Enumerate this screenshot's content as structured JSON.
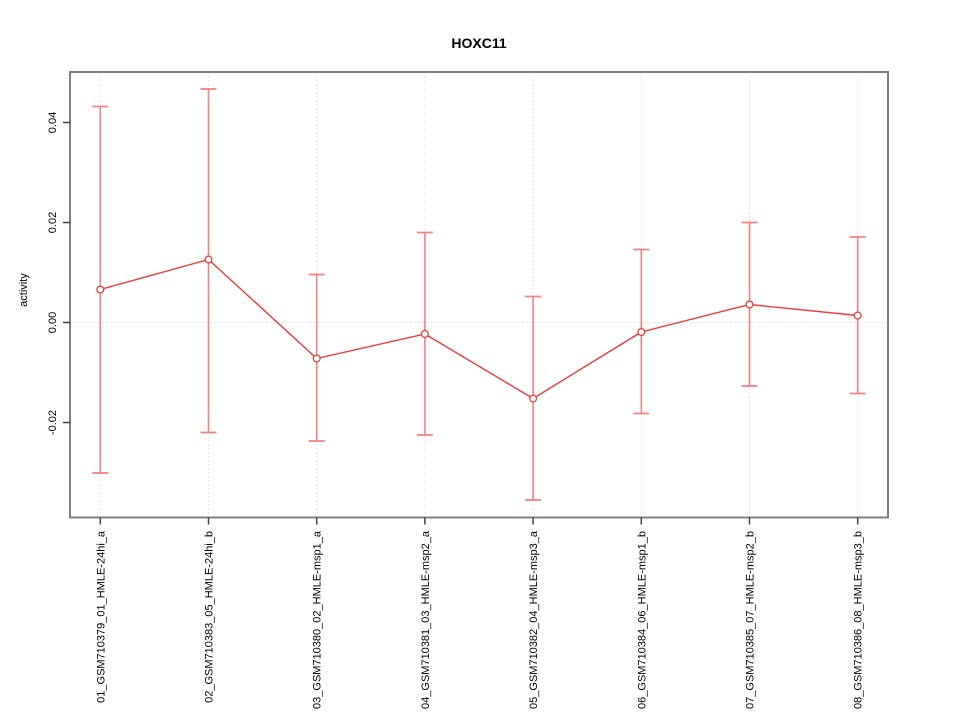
{
  "title": "HOXC11",
  "chart_data": {
    "type": "line",
    "title": "HOXC11",
    "xlabel": "",
    "ylabel": "activity",
    "categories": [
      "01_GSM710379_01_HMLE-24hi_a",
      "02_GSM710383_05_HMLE-24hi_b",
      "03_GSM710380_02_HMLE-msp1_a",
      "04_GSM710381_03_HMLE-msp2_a",
      "05_GSM710382_04_HMLE-msp3_a",
      "06_GSM710384_06_HMLE-msp1_b",
      "07_GSM710385_07_HMLE-msp2_b",
      "08_GSM710386_08_HMLE-msp3_b"
    ],
    "series": [
      {
        "name": "activity",
        "values": [
          0.0066,
          0.0126,
          -0.0072,
          -0.0023,
          -0.0152,
          -0.0019,
          0.0036,
          0.0014
        ],
        "error_upper": [
          0.0432,
          0.0467,
          0.0096,
          0.018,
          0.0052,
          0.0146,
          0.02,
          0.0171
        ],
        "error_lower": [
          -0.0301,
          -0.022,
          -0.0237,
          -0.0225,
          -0.0355,
          -0.0182,
          -0.0127,
          -0.0142
        ]
      }
    ],
    "yticks": {
      "values": [
        -0.02,
        0,
        0.02,
        0.04
      ],
      "labels": [
        "-0.02",
        "0.00",
        "0.02",
        "0.04"
      ]
    },
    "ylim": [
      -0.039,
      0.0501
    ],
    "zero_reference_line": 0,
    "grid": "dotted vertical gridline at each category; dotted horizontal line at 0",
    "legend": "none",
    "colors": {
      "line": "#ee3b3b",
      "marker": "#ee3b3b",
      "error_bar": "#f58080",
      "grid": "#dcdcdc",
      "box": "#808080",
      "text": "#000000",
      "background": "#ffffff"
    }
  }
}
